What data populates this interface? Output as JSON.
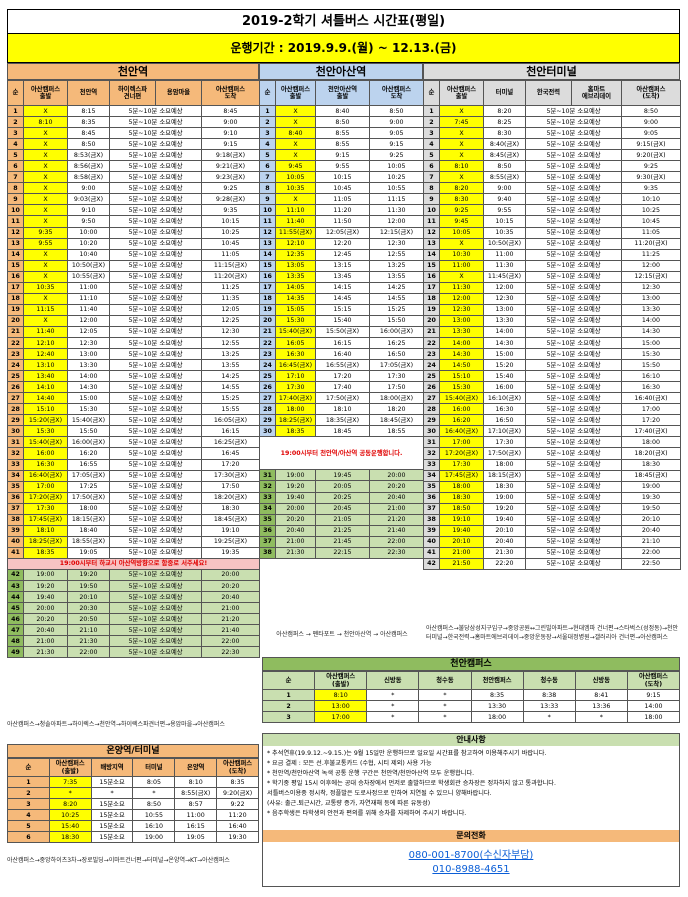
{
  "title": "2019-2학기 셔틀버스 시간표(평일)",
  "period": "운행기간 : 2019.9.9.(월) ~ 12.13.(금)",
  "s1": {
    "name": "천안역",
    "headers": [
      "순",
      "아산캠퍼스\n출발",
      "천안역",
      "하이렉스파\n견너편",
      "용암마을",
      "아산캠퍼스\n도착"
    ],
    "rows": [
      [
        "1",
        "X",
        "8:15",
        "5분~10분 소요예상",
        "8:45"
      ],
      [
        "2",
        "8:10",
        "8:35",
        "5분~10분 소요예상",
        "9:00"
      ],
      [
        "3",
        "X",
        "8:45",
        "5분~10분 소요예상",
        "9:10"
      ],
      [
        "4",
        "X",
        "8:50",
        "5분~10분 소요예상",
        "9:15"
      ],
      [
        "5",
        "X",
        "8:53(금X)",
        "5분~10분 소요예상",
        "9:18(금X)"
      ],
      [
        "6",
        "X",
        "8:56(금X)",
        "5분~10분 소요예상",
        "9:21(금X)"
      ],
      [
        "7",
        "X",
        "8:58(금X)",
        "5분~10분 소요예상",
        "9:23(금X)"
      ],
      [
        "8",
        "X",
        "9:00",
        "5분~10분 소요예상",
        "9:25"
      ],
      [
        "9",
        "X",
        "9:03(금X)",
        "5분~10분 소요예상",
        "9:28(금X)"
      ],
      [
        "10",
        "X",
        "9:10",
        "5분~10분 소요예상",
        "9:35"
      ],
      [
        "11",
        "X",
        "9:50",
        "5분~10분 소요예상",
        "10:15"
      ],
      [
        "12",
        "9:35",
        "10:00",
        "5분~10분 소요예상",
        "10:25"
      ],
      [
        "13",
        "9:55",
        "10:20",
        "5분~10분 소요예상",
        "10:45"
      ],
      [
        "14",
        "X",
        "10:40",
        "5분~10분 소요예상",
        "11:05"
      ],
      [
        "15",
        "X",
        "10:50(금X)",
        "5분~10분 소요예상",
        "11:15(금X)"
      ],
      [
        "16",
        "X",
        "10:55(금X)",
        "5분~10분 소요예상",
        "11:20(금X)"
      ],
      [
        "17",
        "10:35",
        "11:00",
        "5분~10분 소요예상",
        "11:25"
      ],
      [
        "18",
        "X",
        "11:10",
        "5분~10분 소요예상",
        "11:35"
      ],
      [
        "19",
        "11:15",
        "11:40",
        "5분~10분 소요예상",
        "12:05"
      ],
      [
        "20",
        "X",
        "12:00",
        "5분~10분 소요예상",
        "12:25"
      ],
      [
        "21",
        "11:40",
        "12:05",
        "5분~10분 소요예상",
        "12:30"
      ],
      [
        "22",
        "12:10",
        "12:30",
        "5분~10분 소요예상",
        "12:55"
      ],
      [
        "23",
        "12:40",
        "13:00",
        "5분~10분 소요예상",
        "13:25"
      ],
      [
        "24",
        "13:10",
        "13:30",
        "5분~10분 소요예상",
        "13:55"
      ],
      [
        "25",
        "13:40",
        "14:00",
        "5분~10분 소요예상",
        "14:25"
      ],
      [
        "26",
        "14:10",
        "14:30",
        "5분~10분 소요예상",
        "14:55"
      ],
      [
        "27",
        "14:40",
        "15:00",
        "5분~10분 소요예상",
        "15:25"
      ],
      [
        "28",
        "15:10",
        "15:30",
        "5분~10분 소요예상",
        "15:55"
      ],
      [
        "29",
        "15:20(금X)",
        "15:40(금X)",
        "5분~10분 소요예상",
        "16:05(금X)"
      ],
      [
        "30",
        "15:30",
        "15:50",
        "5분~10분 소요예상",
        "16:15"
      ],
      [
        "31",
        "15:40(금X)",
        "16:00(금X)",
        "5분~10분 소요예상",
        "16:25(금X)"
      ],
      [
        "32",
        "16:00",
        "16:20",
        "5분~10분 소요예상",
        "16:45"
      ],
      [
        "33",
        "16:30",
        "16:55",
        "5분~10분 소요예상",
        "17:20"
      ],
      [
        "34",
        "16:40(금X)",
        "17:05(금X)",
        "5분~10분 소요예상",
        "17:30(금X)"
      ],
      [
        "35",
        "17:00",
        "17:25",
        "5분~10분 소요예상",
        "17:50"
      ],
      [
        "36",
        "17:20(금X)",
        "17:50(금X)",
        "5분~10분 소요예상",
        "18:20(금X)"
      ],
      [
        "37",
        "17:30",
        "18:00",
        "5분~10분 소요예상",
        "18:30"
      ],
      [
        "38",
        "17:45(금X)",
        "18:15(금X)",
        "5분~10분 소요예상",
        "18:45(금X)"
      ],
      [
        "39",
        "18:10",
        "18:40",
        "5분~10분 소요예상",
        "19:10"
      ],
      [
        "40",
        "18:25(금X)",
        "18:55(금X)",
        "5분~10분 소요예상",
        "19:25(금X)"
      ],
      [
        "41",
        "18:35",
        "19:05",
        "5분~10분 소요예상",
        "19:35"
      ]
    ],
    "notice": "19:00시부터 하교시 아산역방향으로 함중로 서주세요!",
    "rows2": [
      [
        "42",
        "19:00",
        "19:20",
        "5분~10분 소요예상",
        "20:00"
      ],
      [
        "43",
        "19:20",
        "19:50",
        "5분~10분 소요예상",
        "20:20"
      ],
      [
        "44",
        "19:40",
        "20:10",
        "5분~10분 소요예상",
        "20:40"
      ],
      [
        "45",
        "20:00",
        "20:30",
        "5분~10분 소요예상",
        "21:00"
      ],
      [
        "46",
        "20:20",
        "20:50",
        "5분~10분 소요예상",
        "21:20"
      ],
      [
        "47",
        "20:40",
        "21:10",
        "5분~10분 소요예상",
        "21:40"
      ],
      [
        "48",
        "21:00",
        "21:30",
        "5분~10분 소요예상",
        "22:00"
      ],
      [
        "49",
        "21:30",
        "22:00",
        "5분~10분 소요예상",
        "22:30"
      ]
    ],
    "route": "아산캠퍼스→청솔아파트→하이렉스→천안역→하이렉스파견너편→용암마을→아산캠퍼스"
  },
  "s2": {
    "name": "천안아산역",
    "headers": [
      "순",
      "아산캠퍼스\n출발",
      "천안아산역\n출발",
      "천안아산역\n정차",
      "아산캠퍼스\n도착"
    ],
    "rows": [
      [
        "1",
        "X",
        "8:40",
        "8:50"
      ],
      [
        "2",
        "X",
        "8:50",
        "9:00"
      ],
      [
        "3",
        "8:40",
        "8:55",
        "9:05"
      ],
      [
        "4",
        "X",
        "8:55",
        "9:15"
      ],
      [
        "5",
        "X",
        "9:15",
        "9:25"
      ],
      [
        "6",
        "9:45",
        "9:55",
        "10:05"
      ],
      [
        "7",
        "10:05",
        "10:15",
        "10:25"
      ],
      [
        "8",
        "10:35",
        "10:45",
        "10:55"
      ],
      [
        "9",
        "X",
        "11:05",
        "11:15"
      ],
      [
        "10",
        "11:10",
        "11:20",
        "11:30"
      ],
      [
        "11",
        "11:40",
        "11:50",
        "12:00"
      ],
      [
        "12",
        "11:55(금X)",
        "12:05(금X)",
        "12:15(금X)"
      ],
      [
        "13",
        "12:10",
        "12:20",
        "12:30"
      ],
      [
        "14",
        "12:35",
        "12:45",
        "12:55"
      ],
      [
        "15",
        "13:05",
        "13:15",
        "13:25"
      ],
      [
        "16",
        "13:35",
        "13:45",
        "13:55"
      ],
      [
        "17",
        "14:05",
        "14:15",
        "14:25"
      ],
      [
        "18",
        "14:35",
        "14:45",
        "14:55"
      ],
      [
        "19",
        "15:05",
        "15:15",
        "15:25"
      ],
      [
        "20",
        "15:30",
        "15:40",
        "15:50"
      ],
      [
        "21",
        "15:40(금X)",
        "15:50(금X)",
        "16:00(금X)"
      ],
      [
        "22",
        "16:05",
        "16:15",
        "16:25"
      ],
      [
        "23",
        "16:30",
        "16:40",
        "16:50"
      ],
      [
        "24",
        "16:45(금X)",
        "16:55(금X)",
        "17:05(금X)"
      ],
      [
        "25",
        "17:10",
        "17:20",
        "17:30"
      ],
      [
        "26",
        "17:30",
        "17:40",
        "17:50"
      ],
      [
        "27",
        "17:40(금X)",
        "17:50(금X)",
        "18:00(금X)"
      ],
      [
        "28",
        "18:00",
        "18:10",
        "18:20"
      ],
      [
        "29",
        "18:25(금X)",
        "18:35(금X)",
        "18:45(금X)"
      ],
      [
        "30",
        "18:35",
        "18:45",
        "18:55"
      ]
    ],
    "notice": "19:00시부터 천안역/아산역 공동운행합니다.",
    "rows2": [
      [
        "31",
        "19:00",
        "19:45",
        "20:00"
      ],
      [
        "32",
        "19:20",
        "20:05",
        "20:20"
      ],
      [
        "33",
        "19:40",
        "20:25",
        "20:40"
      ],
      [
        "34",
        "20:00",
        "20:45",
        "21:00"
      ],
      [
        "35",
        "20:20",
        "21:05",
        "21:20"
      ],
      [
        "36",
        "20:40",
        "21:25",
        "21:40"
      ],
      [
        "37",
        "21:00",
        "21:45",
        "22:00"
      ],
      [
        "38",
        "21:30",
        "22:15",
        "22:30"
      ]
    ],
    "route": "아산캠퍼스 → 펜타포트 → 천안아산역 → 아산캠퍼스"
  },
  "s3": {
    "name": "천안터미널",
    "headers": [
      "순",
      "아산캠퍼스\n출발",
      "터미널",
      "한국전력",
      "홈마트\n에브리데이",
      "아산캠퍼스\n(도착)"
    ],
    "rows": [
      [
        "1",
        "X",
        "8:20",
        "5분~10분 소요예상",
        "8:50"
      ],
      [
        "2",
        "7:45",
        "8:25",
        "5분~10분 소요예상",
        "9:00"
      ],
      [
        "3",
        "X",
        "8:30",
        "5분~10분 소요예상",
        "9:05"
      ],
      [
        "4",
        "X",
        "8:40(금X)",
        "5분~10분 소요예상",
        "9:15(금X)"
      ],
      [
        "5",
        "X",
        "8:45(금X)",
        "5분~10분 소요예상",
        "9:20(금X)"
      ],
      [
        "6",
        "8:10",
        "8:50",
        "5분~10분 소요예상",
        "9:25"
      ],
      [
        "7",
        "X",
        "8:55(금X)",
        "5분~10분 소요예상",
        "9:30(금X)"
      ],
      [
        "8",
        "8:20",
        "9:00",
        "5분~10분 소요예상",
        "9:35"
      ],
      [
        "9",
        "8:30",
        "9:40",
        "5분~10분 소요예상",
        "10:10"
      ],
      [
        "10",
        "9:25",
        "9:55",
        "5분~10분 소요예상",
        "10:25"
      ],
      [
        "11",
        "9:45",
        "10:15",
        "5분~10분 소요예상",
        "10:45"
      ],
      [
        "12",
        "10:05",
        "10:35",
        "5분~10분 소요예상",
        "11:05"
      ],
      [
        "13",
        "X",
        "10:50(금X)",
        "5분~10분 소요예상",
        "11:20(금X)"
      ],
      [
        "14",
        "10:30",
        "11:00",
        "5분~10분 소요예상",
        "11:25"
      ],
      [
        "15",
        "11:00",
        "11:30",
        "5분~10분 소요예상",
        "12:00"
      ],
      [
        "16",
        "X",
        "11:45(금X)",
        "5분~10분 소요예상",
        "12:15(금X)"
      ],
      [
        "17",
        "11:30",
        "12:00",
        "5분~10분 소요예상",
        "12:30"
      ],
      [
        "18",
        "12:00",
        "12:30",
        "5분~10분 소요예상",
        "13:00"
      ],
      [
        "19",
        "12:30",
        "13:00",
        "5분~10분 소요예상",
        "13:30"
      ],
      [
        "20",
        "13:00",
        "13:30",
        "5분~10분 소요예상",
        "14:00"
      ],
      [
        "21",
        "13:30",
        "14:00",
        "5분~10분 소요예상",
        "14:30"
      ],
      [
        "22",
        "14:00",
        "14:30",
        "5분~10분 소요예상",
        "15:00"
      ],
      [
        "23",
        "14:30",
        "15:00",
        "5분~10분 소요예상",
        "15:30"
      ],
      [
        "24",
        "14:50",
        "15:20",
        "5분~10분 소요예상",
        "15:50"
      ],
      [
        "25",
        "15:10",
        "15:40",
        "5분~10분 소요예상",
        "16:10"
      ],
      [
        "26",
        "15:30",
        "16:00",
        "5분~10분 소요예상",
        "16:30"
      ],
      [
        "27",
        "15:40(금X)",
        "16:10(금X)",
        "5분~10분 소요예상",
        "16:40(금X)"
      ],
      [
        "28",
        "16:00",
        "16:30",
        "5분~10분 소요예상",
        "17:00"
      ],
      [
        "29",
        "16:20",
        "16:50",
        "5분~10분 소요예상",
        "17:20"
      ],
      [
        "30",
        "16:40(금X)",
        "17:10(금X)",
        "5분~10분 소요예상",
        "17:40(금X)"
      ],
      [
        "31",
        "17:00",
        "17:30",
        "5분~10분 소요예상",
        "18:00"
      ],
      [
        "32",
        "17:20(금X)",
        "17:50(금X)",
        "5분~10분 소요예상",
        "18:20(금X)"
      ],
      [
        "33",
        "17:30",
        "18:00",
        "5분~10분 소요예상",
        "18:30"
      ],
      [
        "34",
        "17:45(금X)",
        "18:15(금X)",
        "5분~10분 소요예상",
        "18:45(금X)"
      ],
      [
        "35",
        "18:00",
        "18:30",
        "5분~10분 소요예상",
        "19:00"
      ],
      [
        "36",
        "18:30",
        "19:00",
        "5분~10분 소요예상",
        "19:30"
      ],
      [
        "37",
        "18:50",
        "19:20",
        "5분~10분 소요예상",
        "19:50"
      ],
      [
        "38",
        "19:10",
        "19:40",
        "5분~10분 소요예상",
        "20:10"
      ],
      [
        "39",
        "19:40",
        "20:10",
        "5분~10분 소요예상",
        "20:40"
      ],
      [
        "40",
        "20:10",
        "20:40",
        "5분~10분 소요예상",
        "21:10"
      ],
      [
        "41",
        "21:00",
        "21:30",
        "5분~10분 소요예상",
        "22:00"
      ],
      [
        "42",
        "21:50",
        "22:20",
        "5분~10분 소요예상",
        "22:50"
      ]
    ],
    "route": "아산캠퍼스→불당삼성지구입구→중앙공원↔그린빌아파트→현대엠파 건너편→스타벅스(성정동)→천안터미널→한국전력→홈마트에브리데이→중앙운동장→서울대정병원→갤러리아 건너편→아산캠퍼스"
  },
  "s4": {
    "name": "천안캠퍼스",
    "headers": [
      "순",
      "아산캠퍼스\n(출발)",
      "신방동",
      "청수동",
      "천안캠퍼스",
      "청수동",
      "신방동",
      "아산캠퍼스\n(도착)"
    ],
    "rows": [
      [
        "1",
        "8:10",
        "*",
        "*",
        "8:35",
        "8:38",
        "8:41",
        "9:15"
      ],
      [
        "2",
        "13:00",
        "*",
        "*",
        "13:30",
        "13:33",
        "13:36",
        "14:00"
      ],
      [
        "3",
        "17:00",
        "*",
        "*",
        "18:00",
        "*",
        "*",
        "18:00"
      ]
    ]
  },
  "s5": {
    "name": "온양역/터미널",
    "headers": [
      "순",
      "아산캠퍼스\n(출발)",
      "배방지역",
      "터미널",
      "온양역",
      "아산캠퍼스\n(도착)"
    ],
    "rows": [
      [
        "1",
        "7:35",
        "15분소요",
        "8:05",
        "8:10",
        "8:35"
      ],
      [
        "2",
        "*",
        "*",
        "*",
        "8:55(금X)",
        "9:20(금X)"
      ],
      [
        "3",
        "8:20",
        "15분소요",
        "8:50",
        "8:57",
        "9:22"
      ],
      [
        "4",
        "10:25",
        "15분소요",
        "10:55",
        "11:00",
        "11:20"
      ],
      [
        "5",
        "15:40",
        "15분소요",
        "16:10",
        "16:15",
        "16:40"
      ],
      [
        "6",
        "18:30",
        "15분소요",
        "19:00",
        "19:05",
        "19:30"
      ]
    ],
    "route": "아산캠퍼스→중앙하이츠3차→장로빌딩→이마트건너편→터미널→온양역→KT→아산캠퍼스"
  },
  "info": {
    "title": "안내사항",
    "lines": [
      "* 추석연휴(19.9.12.~9.15.)는 9월 15일만 운행하므로 일요일 시간표를 참고하여 이용해주시기 바랍니다.",
      "* 요금 결제 : 모든 선.후불교통카드 (수협, 시티 제외) 사용 가능",
      "* 천안역/천안아산역 녹색 공통 운행 구간은 천안역/천안아산역 모두 운행합니다.",
      "* 학기중 평일 15시 이후에는 공대 승차장에서 먼저로 출발하므로 학생회관 승차장은 정차하지 않고 통과합니다.",
      "  서틀버스이용중 정시착, 정플발은 도로사정으로 인하여 지연될 수 있으니 양해바랍니다.",
      "  (사유: 출근.퇴근시간, 교통량 증가, 자연재해 등에 따른 유동성)",
      "* 음주학생은 타학생의 안전과 편의를 위해 승차를 자제하여 주시기 바랍니다."
    ],
    "contact_title": "문의전화",
    "phone1": "080-001-8700(수신자부담)",
    "phone2": "010-8988-4651"
  },
  "colors": {
    "orange": "#f5b97a",
    "blue": "#bcd3ee",
    "gray": "#dcdcdc",
    "green": "#8fbc5f",
    "yellow": "#ffff00"
  }
}
